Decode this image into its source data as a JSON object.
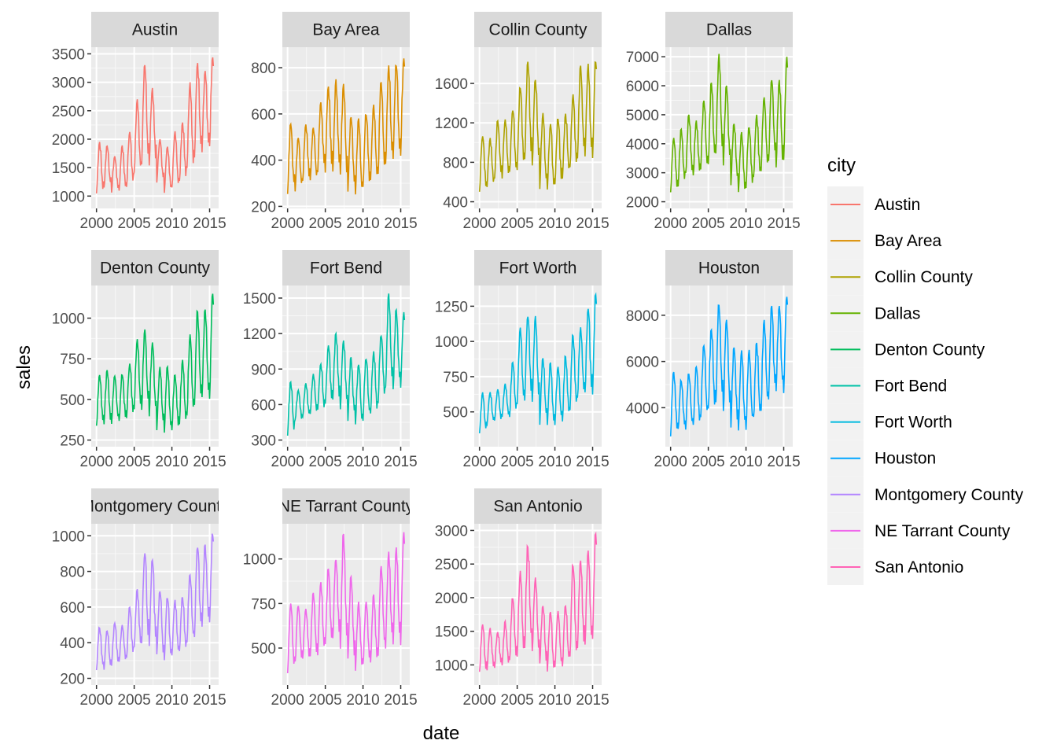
{
  "chart_data": {
    "type": "line",
    "xlabel": "date",
    "ylabel": "sales",
    "legend_title": "city",
    "legend_position": "right",
    "panel_background": "#ebebeb",
    "strip_background": "#d9d9d9",
    "grid": "on",
    "x_ticks": [
      "2000",
      "2005",
      "2010",
      "2015"
    ],
    "x_range": [
      2000,
      2015.5
    ],
    "facets": [
      {
        "name": "Austin",
        "color": "#F8766D",
        "y_ticks": [
          1000,
          1500,
          2000,
          2500,
          3000,
          3500
        ],
        "ylim": [
          900,
          3500
        ],
        "annual_peaks": [
          1950,
          1900,
          1700,
          1900,
          2150,
          2700,
          3300,
          2900,
          2000,
          1900,
          2150,
          2300,
          3000,
          3350,
          3200,
          3450
        ],
        "annual_troughs": [
          1000,
          1100,
          1050,
          1050,
          1100,
          1300,
          1500,
          1500,
          1200,
          1000,
          1100,
          1200,
          1400,
          1600,
          1700,
          1800
        ]
      },
      {
        "name": "Bay Area",
        "color": "#DB8E00",
        "y_ticks": [
          200,
          400,
          600,
          800
        ],
        "ylim": [
          220,
          860
        ],
        "annual_peaks": [
          560,
          500,
          560,
          540,
          650,
          720,
          750,
          730,
          590,
          580,
          600,
          640,
          750,
          810,
          820,
          850
        ],
        "annual_troughs": [
          250,
          260,
          300,
          300,
          340,
          340,
          320,
          300,
          250,
          230,
          270,
          300,
          330,
          360,
          400,
          400
        ]
      },
      {
        "name": "Collin County",
        "color": "#AEA200",
        "y_ticks": [
          400,
          800,
          1200,
          1600
        ],
        "ylim": [
          400,
          1900
        ],
        "annual_peaks": [
          1080,
          1050,
          1220,
          1250,
          1350,
          1580,
          1820,
          1650,
          1300,
          1200,
          1250,
          1300,
          1500,
          1780,
          1800,
          1850
        ],
        "annual_troughs": [
          470,
          520,
          600,
          600,
          650,
          700,
          800,
          700,
          500,
          480,
          550,
          620,
          700,
          780,
          800,
          800
        ]
      },
      {
        "name": "Dallas",
        "color": "#64B200",
        "y_ticks": [
          2000,
          3000,
          4000,
          5000,
          6000,
          7000
        ],
        "ylim": [
          2000,
          7100
        ],
        "annual_peaks": [
          4200,
          4500,
          5000,
          4800,
          5500,
          6100,
          7100,
          6000,
          4700,
          4400,
          4600,
          5000,
          5600,
          6300,
          6200,
          7000
        ],
        "annual_troughs": [
          2300,
          2500,
          2800,
          2800,
          3000,
          3200,
          3400,
          3100,
          2500,
          2200,
          2400,
          2700,
          3000,
          3200,
          3100,
          3300
        ]
      },
      {
        "name": "Denton County",
        "color": "#00BD5C",
        "y_ticks": [
          250,
          500,
          750,
          1000
        ],
        "ylim": [
          250,
          1160
        ],
        "annual_peaks": [
          650,
          680,
          650,
          660,
          720,
          880,
          930,
          850,
          700,
          700,
          660,
          750,
          900,
          1050,
          1060,
          1150
        ],
        "annual_troughs": [
          320,
          330,
          340,
          350,
          380,
          420,
          420,
          380,
          300,
          270,
          300,
          320,
          380,
          420,
          470,
          480
        ]
      },
      {
        "name": "Fort Bend",
        "color": "#00C1A7",
        "y_ticks": [
          300,
          600,
          900,
          1200,
          1500
        ],
        "ylim": [
          300,
          1550
        ],
        "annual_peaks": [
          790,
          720,
          780,
          860,
          950,
          1100,
          1200,
          1150,
          1000,
          950,
          1000,
          1050,
          1200,
          1540,
          1400,
          1380
        ],
        "annual_troughs": [
          330,
          450,
          480,
          500,
          530,
          580,
          600,
          550,
          450,
          400,
          450,
          500,
          600,
          680,
          700,
          720
        ]
      },
      {
        "name": "Fort Worth",
        "color": "#00BADE",
        "y_ticks": [
          500,
          750,
          1000,
          1250
        ],
        "ylim": [
          300,
          1350
        ],
        "annual_peaks": [
          640,
          640,
          660,
          700,
          850,
          1100,
          1200,
          1180,
          900,
          850,
          820,
          900,
          1050,
          1100,
          1250,
          1340
        ],
        "annual_troughs": [
          330,
          400,
          420,
          450,
          450,
          520,
          560,
          520,
          400,
          380,
          400,
          420,
          480,
          560,
          580,
          600
        ]
      },
      {
        "name": "Houston",
        "color": "#00A6FF",
        "y_ticks": [
          4000,
          6000,
          8000
        ],
        "ylim": [
          2600,
          9000
        ],
        "annual_peaks": [
          5600,
          5200,
          5500,
          5800,
          6800,
          7500,
          8600,
          7800,
          6600,
          6500,
          6500,
          6800,
          7800,
          8400,
          8400,
          8900
        ],
        "annual_troughs": [
          2700,
          2900,
          3000,
          3100,
          3300,
          3700,
          3900,
          3600,
          3100,
          2800,
          3000,
          3300,
          3800,
          4300,
          4500,
          4500
        ]
      },
      {
        "name": "Montgomery County",
        "color": "#B385FF",
        "y_ticks": [
          200,
          400,
          600,
          800,
          1000
        ],
        "ylim": [
          200,
          1030
        ],
        "annual_peaks": [
          490,
          470,
          510,
          500,
          600,
          700,
          920,
          870,
          700,
          660,
          640,
          660,
          780,
          950,
          950,
          1020
        ],
        "annual_troughs": [
          230,
          240,
          260,
          280,
          300,
          350,
          380,
          360,
          300,
          280,
          300,
          330,
          380,
          420,
          480,
          500
        ]
      },
      {
        "name": "NE Tarrant County",
        "color": "#EF67EB",
        "y_ticks": [
          500,
          750,
          1000
        ],
        "ylim": [
          330,
          1160
        ],
        "annual_peaks": [
          750,
          740,
          720,
          820,
          870,
          950,
          1010,
          1140,
          900,
          760,
          760,
          800,
          960,
          1050,
          1070,
          1150
        ],
        "annual_troughs": [
          350,
          400,
          420,
          430,
          450,
          480,
          520,
          480,
          400,
          350,
          380,
          400,
          450,
          480,
          480,
          500
        ]
      },
      {
        "name": "San Antonio",
        "color": "#FF63B6",
        "y_ticks": [
          1000,
          1500,
          2000,
          2500,
          3000
        ],
        "ylim": [
          800,
          3000
        ],
        "annual_peaks": [
          1600,
          1550,
          1500,
          1650,
          2000,
          2400,
          2800,
          2300,
          1900,
          1800,
          1800,
          1900,
          2500,
          2550,
          2700,
          2950
        ],
        "annual_troughs": [
          850,
          900,
          950,
          950,
          1000,
          1100,
          1200,
          1100,
          950,
          850,
          900,
          950,
          1050,
          1200,
          1250,
          1350
        ]
      }
    ]
  }
}
